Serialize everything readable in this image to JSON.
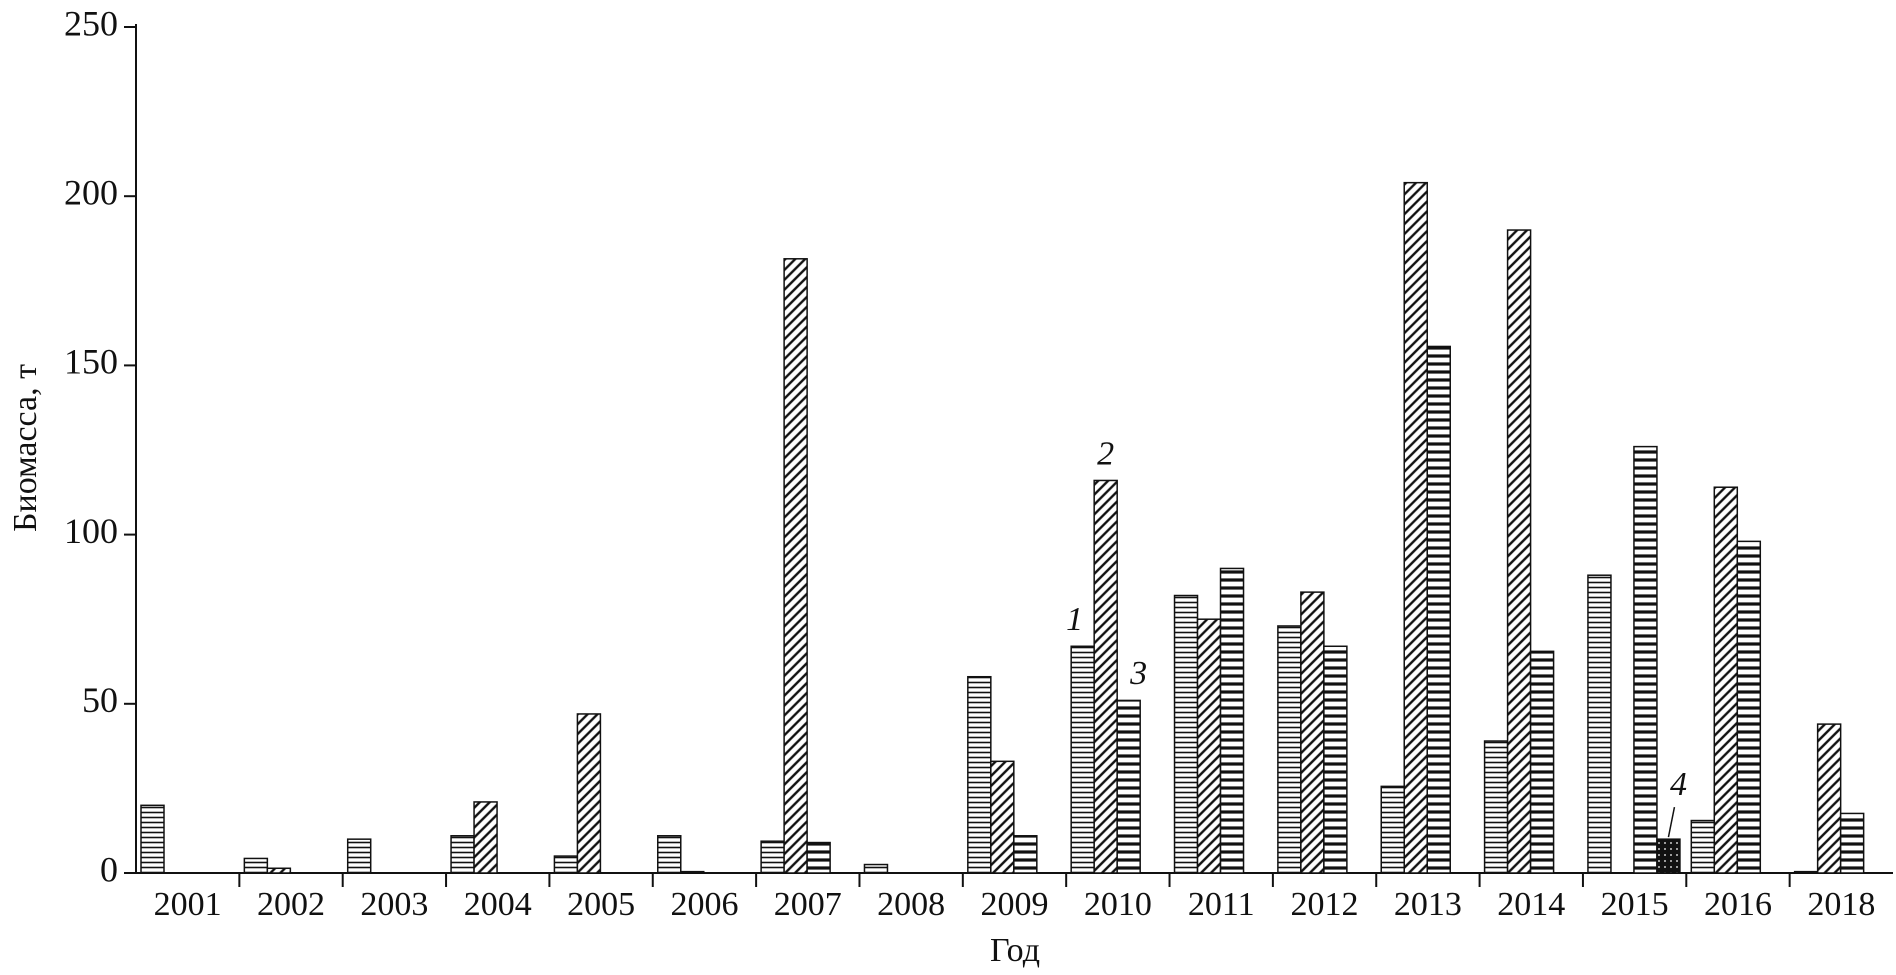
{
  "chart_data": {
    "type": "bar",
    "y_label": "Биомасса, т",
    "x_label": "Год",
    "categories": [
      "2001",
      "2002",
      "2003",
      "2004",
      "2005",
      "2006",
      "2007",
      "2008",
      "2009",
      "2010",
      "2011",
      "2012",
      "2013",
      "2014",
      "2015",
      "2016",
      "2018"
    ],
    "series": [
      {
        "name": "1",
        "values": [
          20,
          4.3,
          10,
          11,
          5,
          11,
          9.4,
          2.5,
          58,
          67,
          82,
          73,
          25.6,
          39,
          88,
          15.5,
          0.4
        ]
      },
      {
        "name": "2",
        "values": [
          null,
          1.4,
          null,
          21,
          47,
          0.4,
          181.5,
          null,
          33,
          116,
          75,
          83,
          204,
          190,
          null,
          114,
          44
        ]
      },
      {
        "name": "3",
        "values": [
          null,
          null,
          null,
          null,
          null,
          null,
          9,
          null,
          11,
          51,
          90,
          67,
          155.6,
          65.5,
          126,
          98,
          17.6
        ]
      },
      {
        "name": "4",
        "values": [
          null,
          null,
          null,
          null,
          null,
          null,
          null,
          null,
          null,
          null,
          null,
          null,
          null,
          null,
          10,
          null,
          null
        ]
      }
    ],
    "ylim": [
      0,
      250
    ],
    "yticks": [
      0,
      50,
      100,
      150,
      200,
      250
    ],
    "grid": false
  }
}
